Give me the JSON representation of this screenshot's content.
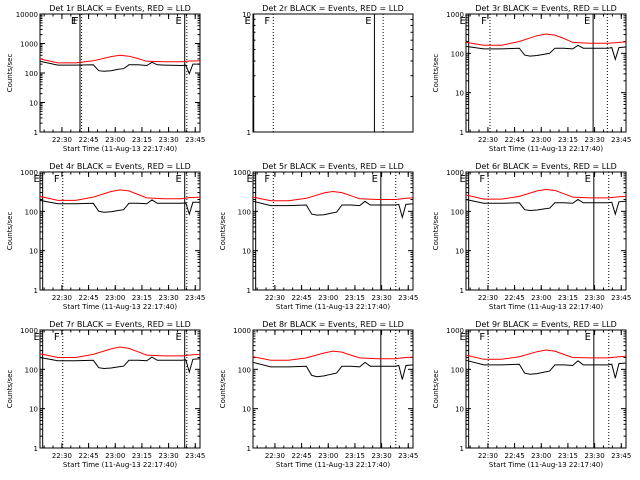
{
  "chart_data": [
    {
      "type": "line",
      "title": "Det 1r BLACK = Events, RED = LLD",
      "xlabel": "Start Time (11-Aug-13 22:17:40)",
      "ylabel": "Counts/sec",
      "yscale": "log",
      "ylim": [
        1,
        10000
      ],
      "ytick_labels": [
        "1",
        "10",
        "100",
        "1000",
        "10000"
      ],
      "xtick_labels": [
        "22:30",
        "22:45",
        "23:00",
        "23:15",
        "23:30",
        "23:45"
      ],
      "markers": [
        {
          "label": "E",
          "t": 22.5
        },
        {
          "label": "F",
          "t": 23.4
        },
        {
          "label": "E",
          "t": 81.4
        },
        {
          "label": "",
          "t": 82.6
        }
      ],
      "series": [
        {
          "color": "#ff0000",
          "x": [
            0,
            10,
            20,
            30,
            40,
            45,
            50,
            55,
            60,
            70,
            80,
            84,
            86,
            90
          ],
          "values": [
            300,
            220,
            220,
            260,
            360,
            400,
            370,
            310,
            250,
            240,
            240,
            255,
            255,
            260
          ]
        },
        {
          "color": "#000000",
          "x": [
            0,
            10,
            20,
            30,
            33,
            36,
            40,
            44,
            47,
            50,
            55,
            60,
            63,
            66,
            70,
            80,
            82,
            84,
            86,
            90
          ],
          "values": [
            250,
            185,
            185,
            190,
            120,
            115,
            120,
            135,
            140,
            190,
            190,
            180,
            230,
            190,
            185,
            180,
            185,
            95,
            200,
            200
          ]
        }
      ]
    },
    {
      "type": "line",
      "title": "Det 2r BLACK = Events, RED = LLD",
      "xlabel": "",
      "ylabel": "",
      "yscale": "log",
      "ylim": [
        1,
        10
      ],
      "ytick_labels": [
        "1",
        "10"
      ],
      "xtick_labels": [],
      "markers": [
        {
          "label": "E",
          "t": 0.4
        },
        {
          "label": "F",
          "t": 11.4
        },
        {
          "label": "E",
          "t": 68.3
        },
        {
          "label": "",
          "t": 73.2
        }
      ],
      "series": []
    },
    {
      "type": "line",
      "title": "Det 3r BLACK = Events, RED = LLD",
      "xlabel": "Start Time (11-Aug-13 22:17:40)",
      "ylabel": "Counts/sec",
      "yscale": "log",
      "ylim": [
        1,
        1000
      ],
      "ytick_labels": [
        "1",
        "10",
        "100",
        "1000"
      ],
      "xtick_labels": [
        "22:30",
        "22:45",
        "23:00",
        "23:15",
        "23:30",
        "23:45"
      ],
      "markers": [
        {
          "label": "E",
          "t": 1.5
        },
        {
          "label": "F",
          "t": 13.5
        },
        {
          "label": "E",
          "t": 71.5
        },
        {
          "label": "",
          "t": 79.5
        }
      ],
      "series": [
        {
          "color": "#ff0000",
          "x": [
            0,
            10,
            20,
            30,
            40,
            45,
            50,
            55,
            60,
            70,
            80,
            84,
            86,
            90
          ],
          "values": [
            190,
            160,
            160,
            200,
            280,
            310,
            290,
            240,
            190,
            180,
            180,
            185,
            190,
            195
          ]
        },
        {
          "color": "#000000",
          "x": [
            0,
            10,
            20,
            30,
            33,
            36,
            40,
            44,
            47,
            50,
            55,
            60,
            63,
            66,
            70,
            80,
            82,
            84,
            86,
            90
          ],
          "values": [
            150,
            130,
            130,
            135,
            90,
            85,
            88,
            95,
            100,
            135,
            135,
            130,
            160,
            135,
            135,
            135,
            140,
            70,
            140,
            145
          ]
        }
      ]
    },
    {
      "type": "line",
      "title": "Det 4r BLACK = Events, RED = LLD",
      "xlabel": "Start Time (11-Aug-13 22:17:40)",
      "ylabel": "Counts/sec",
      "yscale": "log",
      "ylim": [
        1,
        1000
      ],
      "ytick_labels": [
        "1",
        "10",
        "100",
        "1000"
      ],
      "xtick_labels": [
        "22:30",
        "22:45",
        "23:00",
        "23:15",
        "23:30",
        "23:45"
      ],
      "markers": [
        {
          "label": "E",
          "t": 1.5
        },
        {
          "label": "F",
          "t": 12.8
        },
        {
          "label": "E",
          "t": 81.4
        },
        {
          "label": "",
          "t": 82.6
        }
      ],
      "series": [
        {
          "color": "#ff0000",
          "x": [
            0,
            10,
            20,
            30,
            40,
            45,
            50,
            55,
            60,
            70,
            80,
            84,
            86,
            90
          ],
          "values": [
            240,
            190,
            190,
            230,
            320,
            350,
            330,
            270,
            220,
            210,
            210,
            225,
            225,
            230
          ]
        },
        {
          "color": "#000000",
          "x": [
            0,
            10,
            20,
            30,
            33,
            36,
            40,
            44,
            47,
            50,
            55,
            60,
            63,
            66,
            70,
            80,
            82,
            84,
            86,
            90
          ],
          "values": [
            190,
            155,
            155,
            160,
            100,
            95,
            98,
            105,
            110,
            160,
            160,
            155,
            195,
            160,
            160,
            160,
            165,
            85,
            170,
            170
          ]
        }
      ]
    },
    {
      "type": "line",
      "title": "Det 5r BLACK = Events, RED = LLD",
      "xlabel": "Start Time (11-Aug-13 22:17:40)",
      "ylabel": "Counts/sec",
      "yscale": "log",
      "ylim": [
        1,
        1000
      ],
      "ytick_labels": [
        "1",
        "10",
        "100",
        "1000"
      ],
      "xtick_labels": [
        "22:30",
        "22:45",
        "23:00",
        "23:15",
        "23:30",
        "23:45"
      ],
      "markers": [
        {
          "label": "E",
          "t": 1.5
        },
        {
          "label": "F",
          "t": 11.4
        },
        {
          "label": "E",
          "t": 71.9
        },
        {
          "label": "",
          "t": 80.3
        }
      ],
      "series": [
        {
          "color": "#ff0000",
          "x": [
            0,
            10,
            20,
            30,
            40,
            45,
            50,
            55,
            60,
            70,
            80,
            84,
            86,
            90
          ],
          "values": [
            230,
            185,
            185,
            215,
            295,
            320,
            300,
            250,
            210,
            200,
            200,
            210,
            215,
            220
          ]
        },
        {
          "color": "#000000",
          "x": [
            0,
            10,
            20,
            30,
            33,
            36,
            40,
            44,
            47,
            50,
            55,
            60,
            63,
            66,
            70,
            80,
            82,
            84,
            86,
            90
          ],
          "values": [
            180,
            140,
            140,
            145,
            85,
            80,
            82,
            90,
            95,
            145,
            145,
            140,
            180,
            145,
            145,
            145,
            150,
            70,
            150,
            155
          ]
        }
      ]
    },
    {
      "type": "line",
      "title": "Det 6r BLACK = Events, RED = LLD",
      "xlabel": "Start Time (11-Aug-13 22:17:40)",
      "ylabel": "Counts/sec",
      "yscale": "log",
      "ylim": [
        1,
        1000
      ],
      "ytick_labels": [
        "1",
        "10",
        "100",
        "1000"
      ],
      "xtick_labels": [
        "22:30",
        "22:45",
        "23:00",
        "23:15",
        "23:30",
        "23:45"
      ],
      "markers": [
        {
          "label": "E",
          "t": 1.5
        },
        {
          "label": "F",
          "t": 12.5
        },
        {
          "label": "E",
          "t": 71.9
        },
        {
          "label": "",
          "t": 80.3
        }
      ],
      "series": [
        {
          "color": "#ff0000",
          "x": [
            0,
            10,
            20,
            30,
            40,
            45,
            50,
            55,
            60,
            70,
            80,
            84,
            86,
            90
          ],
          "values": [
            260,
            205,
            205,
            240,
            330,
            360,
            340,
            280,
            230,
            220,
            220,
            230,
            235,
            240
          ]
        },
        {
          "color": "#000000",
          "x": [
            0,
            10,
            20,
            30,
            33,
            36,
            40,
            44,
            47,
            50,
            55,
            60,
            63,
            66,
            70,
            80,
            82,
            84,
            86,
            90
          ],
          "values": [
            200,
            160,
            160,
            165,
            110,
            105,
            108,
            115,
            120,
            165,
            165,
            160,
            200,
            165,
            165,
            165,
            170,
            85,
            175,
            180
          ]
        }
      ]
    },
    {
      "type": "line",
      "title": "Det 7r BLACK = Events, RED = LLD",
      "xlabel": "Start Time (11-Aug-13 22:17:40)",
      "ylabel": "Counts/sec",
      "yscale": "log",
      "ylim": [
        1,
        1000
      ],
      "ytick_labels": [
        "1",
        "10",
        "100",
        "1000"
      ],
      "xtick_labels": [
        "22:30",
        "22:45",
        "23:00",
        "23:15",
        "23:30",
        "23:45"
      ],
      "markers": [
        {
          "label": "E",
          "t": 1.5
        },
        {
          "label": "F",
          "t": 12.8
        },
        {
          "label": "E",
          "t": 81.4
        },
        {
          "label": "",
          "t": 82.6
        }
      ],
      "series": [
        {
          "color": "#ff0000",
          "x": [
            0,
            10,
            20,
            30,
            40,
            45,
            50,
            55,
            60,
            70,
            80,
            84,
            86,
            90
          ],
          "values": [
            250,
            200,
            200,
            240,
            330,
            370,
            340,
            280,
            230,
            220,
            220,
            230,
            235,
            240
          ]
        },
        {
          "color": "#000000",
          "x": [
            0,
            10,
            20,
            30,
            33,
            36,
            40,
            44,
            47,
            50,
            55,
            60,
            63,
            66,
            70,
            80,
            82,
            84,
            86,
            90
          ],
          "values": [
            200,
            165,
            165,
            170,
            110,
            105,
            108,
            115,
            120,
            170,
            170,
            165,
            205,
            170,
            170,
            170,
            175,
            85,
            180,
            185
          ]
        }
      ]
    },
    {
      "type": "line",
      "title": "Det 8r BLACK = Events, RED = LLD",
      "xlabel": "Start Time (11-Aug-13 22:17:40)",
      "ylabel": "Counts/sec",
      "yscale": "log",
      "ylim": [
        1,
        1000
      ],
      "ytick_labels": [
        "1",
        "10",
        "100",
        "1000"
      ],
      "xtick_labels": [
        "22:30",
        "22:45",
        "23:00",
        "23:15",
        "23:30",
        "23:45"
      ],
      "markers": [
        {
          "label": "",
          "t": 71.9
        },
        {
          "label": "",
          "t": 80.3
        }
      ],
      "series": [
        {
          "color": "#ff0000",
          "x": [
            0,
            10,
            20,
            30,
            40,
            45,
            50,
            55,
            60,
            70,
            80,
            84,
            86,
            90
          ],
          "values": [
            210,
            170,
            170,
            195,
            260,
            290,
            275,
            230,
            195,
            185,
            185,
            195,
            200,
            205
          ]
        },
        {
          "color": "#000000",
          "x": [
            0,
            10,
            20,
            30,
            33,
            36,
            40,
            44,
            47,
            50,
            55,
            60,
            63,
            66,
            70,
            80,
            82,
            84,
            86,
            90
          ],
          "values": [
            150,
            115,
            115,
            120,
            70,
            65,
            68,
            75,
            80,
            120,
            120,
            115,
            150,
            120,
            120,
            120,
            125,
            55,
            125,
            130
          ]
        }
      ]
    },
    {
      "type": "line",
      "title": "Det 9r BLACK = Events, RED = LLD",
      "xlabel": "Start Time (11-Aug-13 22:17:40)",
      "ylabel": "Counts/sec",
      "yscale": "log",
      "ylim": [
        1,
        1000
      ],
      "ytick_labels": [
        "1",
        "10",
        "100",
        "1000"
      ],
      "xtick_labels": [
        "22:30",
        "22:45",
        "23:00",
        "23:15",
        "23:30",
        "23:45"
      ],
      "markers": [
        {
          "label": "E",
          "t": 1.5
        },
        {
          "label": "F",
          "t": 12.5
        },
        {
          "label": "E",
          "t": 71.9
        },
        {
          "label": "",
          "t": 80.3
        }
      ],
      "series": [
        {
          "color": "#ff0000",
          "x": [
            0,
            10,
            20,
            30,
            40,
            45,
            50,
            55,
            60,
            70,
            80,
            84,
            86,
            90
          ],
          "values": [
            230,
            180,
            180,
            210,
            280,
            310,
            290,
            240,
            200,
            195,
            195,
            205,
            210,
            215
          ]
        },
        {
          "color": "#000000",
          "x": [
            0,
            10,
            20,
            30,
            33,
            36,
            40,
            44,
            47,
            50,
            55,
            60,
            63,
            66,
            70,
            80,
            82,
            84,
            86,
            90
          ],
          "values": [
            170,
            130,
            130,
            135,
            80,
            75,
            78,
            85,
            90,
            130,
            130,
            125,
            165,
            130,
            130,
            130,
            135,
            60,
            140,
            145
          ]
        }
      ]
    }
  ]
}
